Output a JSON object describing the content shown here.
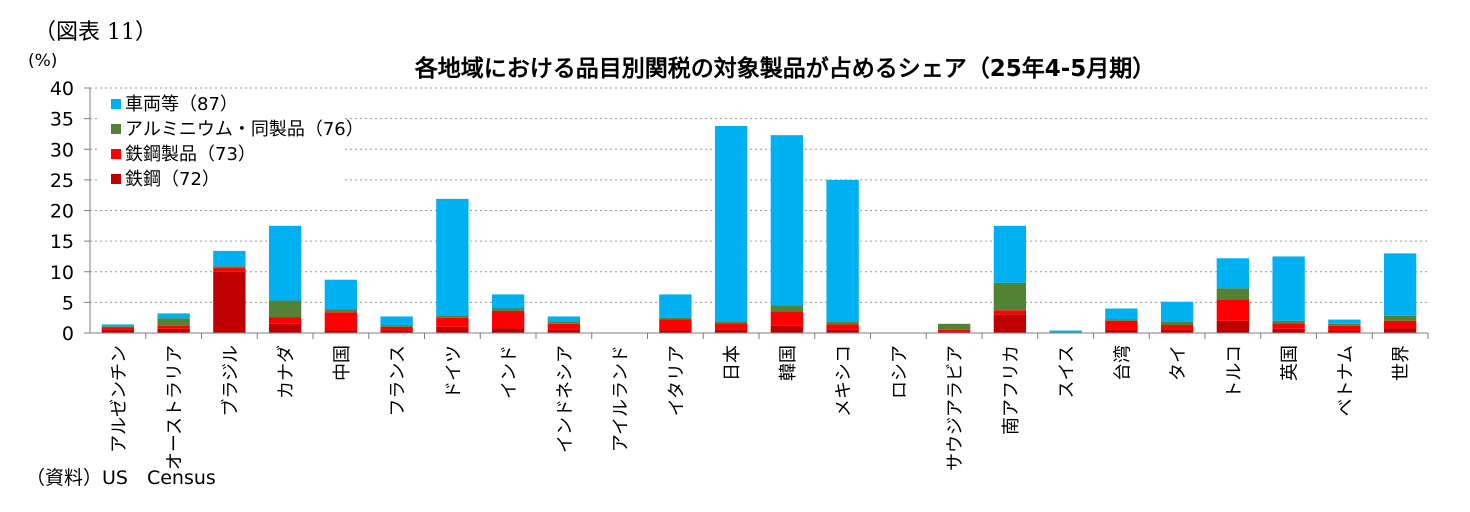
{
  "figure_label": "（図表 11）",
  "source_note": "（資料）US　Census",
  "chart_data": {
    "type": "bar",
    "stacked": true,
    "title": "各地域における品目別関税の対象製品が占めるシェア（25年4-5月期）",
    "ylabel": "(%)",
    "xlabel": "",
    "ylim": [
      0,
      40
    ],
    "yticks": [
      0,
      5,
      10,
      15,
      20,
      25,
      30,
      35,
      40
    ],
    "grid": "horizontal-dotted",
    "legend_position": "top-left",
    "categories": [
      "アルゼンチン",
      "オーストラリア",
      "ブラジル",
      "カナダ",
      "中国",
      "フランス",
      "ドイツ",
      "インド",
      "インドネシア",
      "アイルランド",
      "イタリア",
      "日本",
      "韓国",
      "メキシコ",
      "ロシア",
      "サウジアラビア",
      "南アフリカ",
      "スイス",
      "台湾",
      "タイ",
      "トルコ",
      "英国",
      "ベトナム",
      "世界"
    ],
    "series": [
      {
        "name": "鉄鋼（72）",
        "color": "#c00000",
        "values": [
          0.5,
          0.7,
          10.0,
          1.5,
          0.4,
          0.4,
          1.0,
          0.8,
          0.6,
          0.0,
          0.4,
          0.6,
          1.2,
          0.5,
          0.0,
          0.3,
          3.0,
          0.0,
          0.5,
          0.5,
          2.0,
          0.7,
          0.4,
          0.8
        ]
      },
      {
        "name": "鉄鋼製品（73）",
        "color": "#ff0000",
        "values": [
          0.4,
          0.5,
          0.6,
          1.1,
          3.0,
          0.6,
          1.5,
          2.8,
          0.9,
          0.0,
          1.8,
          1.0,
          2.3,
          0.9,
          0.0,
          0.2,
          0.7,
          0.0,
          1.5,
          0.8,
          3.5,
          0.9,
          0.8,
          1.2
        ]
      },
      {
        "name": "アルミニウム・同製品（76）",
        "color": "#548235",
        "values": [
          0.2,
          1.2,
          0.3,
          2.7,
          0.5,
          0.3,
          0.4,
          0.4,
          0.4,
          0.0,
          0.3,
          0.3,
          1.0,
          0.4,
          0.0,
          1.0,
          4.5,
          0.0,
          0.2,
          0.5,
          1.8,
          0.4,
          0.3,
          0.8
        ]
      },
      {
        "name": "車両等（87）",
        "color": "#00b0f0",
        "values": [
          0.3,
          0.8,
          2.5,
          12.2,
          4.8,
          1.4,
          19.0,
          2.3,
          0.8,
          0.0,
          3.8,
          31.9,
          27.8,
          23.2,
          0.0,
          0.0,
          9.3,
          0.4,
          1.8,
          3.3,
          4.9,
          10.5,
          0.7,
          10.2
        ]
      }
    ]
  }
}
